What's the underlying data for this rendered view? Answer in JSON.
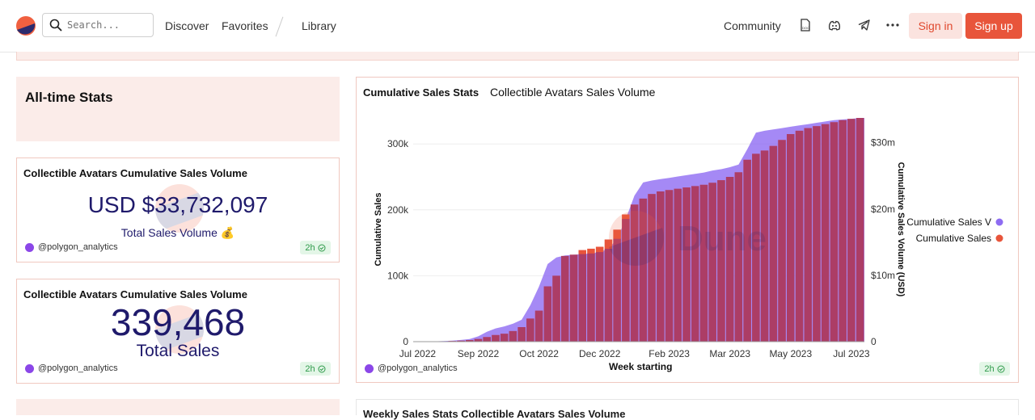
{
  "header": {
    "search_placeholder": "Search...",
    "nav": [
      "Discover",
      "Favorites",
      "Library"
    ],
    "community": "Community",
    "icons": [
      "doc-icon",
      "discord-icon",
      "telegram-icon",
      "more-icon"
    ],
    "sign_in": "Sign in",
    "sign_up": "Sign up",
    "brand_colors": {
      "accent": "#e8553b",
      "navy": "#2c2b6e"
    }
  },
  "all_time": {
    "title": "All-time Stats"
  },
  "volume_card": {
    "title": "Collectible Avatars Cumulative Sales Volume",
    "value": "USD $33,732,097",
    "label": "Total Sales Volume 💰",
    "author": "@polygon_analytics",
    "age": "2h"
  },
  "sales_card": {
    "title": "Collectible Avatars Cumulative Sales Volume",
    "value": "339,468",
    "label": "Total Sales",
    "author": "@polygon_analytics",
    "age": "2h"
  },
  "chart_card": {
    "title": "Cumulative Sales Stats",
    "subtitle": "Collectible Avatars Sales Volume",
    "author": "@polygon_analytics",
    "age": "2h",
    "watermark": "Dune"
  },
  "bottom_card": {
    "title": "Weekly Sales Stats  Collectible Avatars Sales Volume"
  },
  "chart_data": {
    "type": "bar",
    "xlabel": "Week starting",
    "ylabel": "Cumulative Sales",
    "y2label": "Cumulative Sales Volume (USD)",
    "x_ticks": [
      "Jul 2022",
      "Sep 2022",
      "Oct 2022",
      "Dec 2022",
      "Feb 2023",
      "Mar 2023",
      "May 2023",
      "Jul 2023"
    ],
    "y_ticks": [
      "0",
      "100k",
      "200k",
      "300k"
    ],
    "y2_ticks": [
      "0",
      "$10m",
      "$20m",
      "$30m"
    ],
    "ylim": [
      0,
      339468
    ],
    "y2lim": [
      0,
      33732097
    ],
    "legend_position": "right",
    "legend": [
      "Cumulative Sales V",
      "Cumulative Sales"
    ],
    "series": [
      {
        "name": "Cumulative Sales",
        "color": "#e8553b",
        "kind": "bar",
        "values": [
          0,
          0,
          200,
          500,
          1000,
          1500,
          2500,
          4000,
          7000,
          10000,
          12000,
          16000,
          22000,
          35000,
          47000,
          84000,
          100000,
          130000,
          132000,
          139000,
          141000,
          144000,
          155000,
          170000,
          193000,
          208000,
          217000,
          224000,
          228000,
          230000,
          232000,
          234000,
          236000,
          238000,
          241000,
          245000,
          250000,
          257000,
          276000,
          285000,
          290000,
          297000,
          306000,
          315000,
          320000,
          324000,
          327000,
          330000,
          333000,
          336000,
          338000,
          339468
        ]
      },
      {
        "name": "Cumulative Sales Volume",
        "color": "#8e6cf2",
        "kind": "area",
        "values": [
          0,
          0,
          50000,
          100000,
          150000,
          250000,
          400000,
          800000,
          1500000,
          2000000,
          2300000,
          2700000,
          3300000,
          5500000,
          8300000,
          11700000,
          12700000,
          13000000,
          13100000,
          13200000,
          13300000,
          13500000,
          14000000,
          15500000,
          18500000,
          22000000,
          24000000,
          24300000,
          24500000,
          24700000,
          24900000,
          25100000,
          25300000,
          25500000,
          25800000,
          26000000,
          26300000,
          26700000,
          29000000,
          31500000,
          31800000,
          32000000,
          32200000,
          32400000,
          32600000,
          32800000,
          33000000,
          33200000,
          33400000,
          33500000,
          33600000,
          33732097
        ]
      }
    ]
  }
}
